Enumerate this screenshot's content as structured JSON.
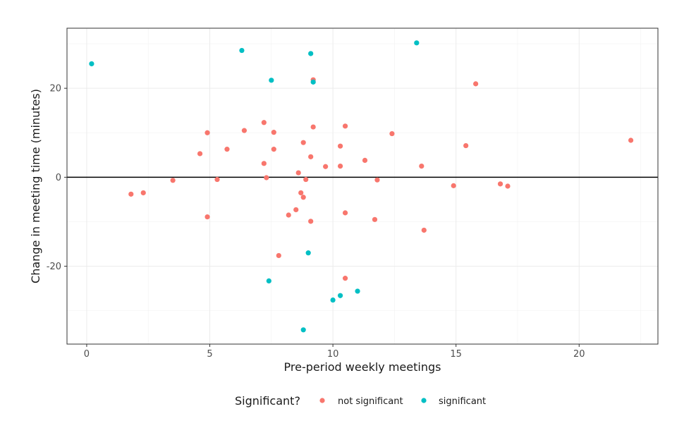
{
  "chart_data": {
    "type": "scatter",
    "title": "",
    "xlabel": "Pre-period weekly meetings",
    "ylabel": "Change in meeting time (minutes)",
    "xlim": [
      -0.8,
      23.2
    ],
    "ylim": [
      -37.5,
      33.5
    ],
    "x_ticks": [
      0,
      5,
      10,
      15,
      20
    ],
    "y_ticks": [
      -20,
      0,
      20
    ],
    "x_tick_labels": [
      "0",
      "5",
      "10",
      "15",
      "20"
    ],
    "y_tick_labels": [
      "-20",
      "0",
      "20"
    ],
    "grid": true,
    "reference_line_y": 0,
    "legend": {
      "title": "Significant?",
      "position": "bottom",
      "entries": [
        {
          "label": "not significant",
          "color": "#f8766d"
        },
        {
          "label": "significant",
          "color": "#00bfc4"
        }
      ]
    },
    "series": [
      {
        "name": "not significant",
        "color": "#f8766d",
        "points": [
          {
            "x": 1.8,
            "y": -3.8
          },
          {
            "x": 2.3,
            "y": -3.5
          },
          {
            "x": 3.5,
            "y": -0.7
          },
          {
            "x": 4.6,
            "y": 5.3
          },
          {
            "x": 4.9,
            "y": 10.0
          },
          {
            "x": 4.9,
            "y": -8.9
          },
          {
            "x": 5.3,
            "y": -0.5
          },
          {
            "x": 5.7,
            "y": 6.3
          },
          {
            "x": 6.4,
            "y": 10.5
          },
          {
            "x": 7.2,
            "y": 12.3
          },
          {
            "x": 7.2,
            "y": 3.1
          },
          {
            "x": 7.3,
            "y": -0.1
          },
          {
            "x": 7.6,
            "y": 10.1
          },
          {
            "x": 7.6,
            "y": 6.3
          },
          {
            "x": 7.8,
            "y": -17.6
          },
          {
            "x": 8.2,
            "y": -8.5
          },
          {
            "x": 8.5,
            "y": -7.3
          },
          {
            "x": 8.6,
            "y": 1.0
          },
          {
            "x": 8.7,
            "y": -3.5
          },
          {
            "x": 8.8,
            "y": -4.5
          },
          {
            "x": 8.8,
            "y": 7.8
          },
          {
            "x": 8.9,
            "y": -0.5
          },
          {
            "x": 9.1,
            "y": 4.6
          },
          {
            "x": 9.1,
            "y": -9.9
          },
          {
            "x": 9.2,
            "y": 11.3
          },
          {
            "x": 9.2,
            "y": 21.9
          },
          {
            "x": 9.7,
            "y": 2.4
          },
          {
            "x": 10.3,
            "y": 7.0
          },
          {
            "x": 10.3,
            "y": 2.5
          },
          {
            "x": 10.5,
            "y": -8.0
          },
          {
            "x": 10.5,
            "y": 11.5
          },
          {
            "x": 10.5,
            "y": -22.7
          },
          {
            "x": 11.3,
            "y": 3.8
          },
          {
            "x": 11.7,
            "y": -9.5
          },
          {
            "x": 11.8,
            "y": -0.6
          },
          {
            "x": 12.4,
            "y": 9.8
          },
          {
            "x": 13.6,
            "y": 2.5
          },
          {
            "x": 13.7,
            "y": -11.9
          },
          {
            "x": 14.9,
            "y": -1.9
          },
          {
            "x": 15.4,
            "y": 7.1
          },
          {
            "x": 15.8,
            "y": 21.0
          },
          {
            "x": 16.8,
            "y": -1.5
          },
          {
            "x": 17.1,
            "y": -2.0
          },
          {
            "x": 22.1,
            "y": 8.3
          }
        ]
      },
      {
        "name": "significant",
        "color": "#00bfc4",
        "points": [
          {
            "x": 0.2,
            "y": 25.5
          },
          {
            "x": 6.3,
            "y": 28.5
          },
          {
            "x": 7.5,
            "y": 21.8
          },
          {
            "x": 7.4,
            "y": -23.3
          },
          {
            "x": 8.8,
            "y": -34.3
          },
          {
            "x": 9.0,
            "y": -17.0
          },
          {
            "x": 9.1,
            "y": 27.8
          },
          {
            "x": 9.2,
            "y": 21.4
          },
          {
            "x": 10.0,
            "y": -27.6
          },
          {
            "x": 10.3,
            "y": -26.6
          },
          {
            "x": 11.0,
            "y": -25.6
          },
          {
            "x": 13.4,
            "y": 30.2
          }
        ]
      }
    ]
  }
}
